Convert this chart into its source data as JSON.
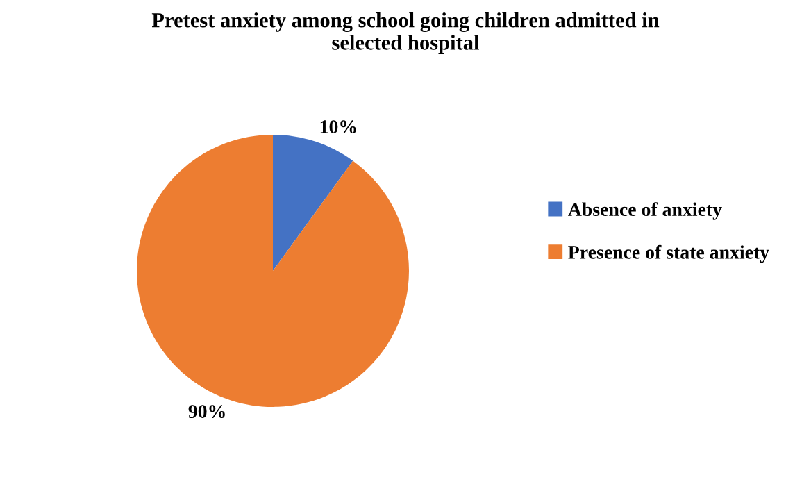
{
  "chart_data": {
    "type": "pie",
    "title": "Pretest anxiety among school going children admitted in\nselected hospital",
    "categories": [
      "Absence of anxiety",
      "Presence of state anxiety"
    ],
    "values": [
      10,
      90
    ],
    "colors": [
      "#4472c4",
      "#ed7d31"
    ],
    "value_labels": [
      "10%",
      "90%"
    ],
    "legend": "right"
  }
}
